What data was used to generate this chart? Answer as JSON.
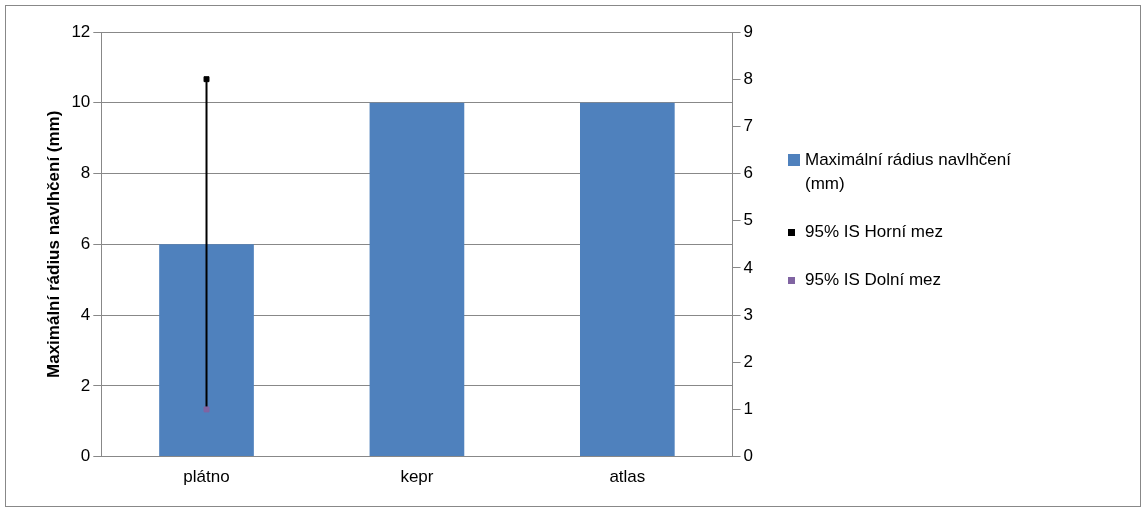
{
  "chart_data": {
    "type": "bar",
    "ylabel": "Maximální rádius navlhčení (mm)",
    "categories": [
      "plátno",
      "kepr",
      "atlas"
    ],
    "series": [
      {
        "name": "Maximální rádius navlhčení (mm)",
        "color": "#4f81bd",
        "values": [
          6,
          10,
          10
        ],
        "errors": [
          [
            1.4,
            10.6
          ],
          null,
          null
        ]
      },
      {
        "name": "95% IS Horní mez",
        "type": "line",
        "axis": "y2",
        "color": "#000000",
        "values": [
          8,
          null,
          null
        ]
      },
      {
        "name": "95% IS Dolní mez",
        "type": "line",
        "axis": "y2",
        "color": "#8064a2",
        "values": [
          1,
          null,
          null
        ]
      }
    ],
    "ylim": [
      0,
      12
    ],
    "yticks": [
      0,
      2,
      4,
      6,
      8,
      10,
      12
    ],
    "y2lim": [
      0,
      9
    ],
    "y2ticks": [
      0,
      1,
      2,
      3,
      4,
      5,
      6,
      7,
      8,
      9
    ],
    "grid": "y",
    "legend": "right",
    "marker": "square"
  }
}
